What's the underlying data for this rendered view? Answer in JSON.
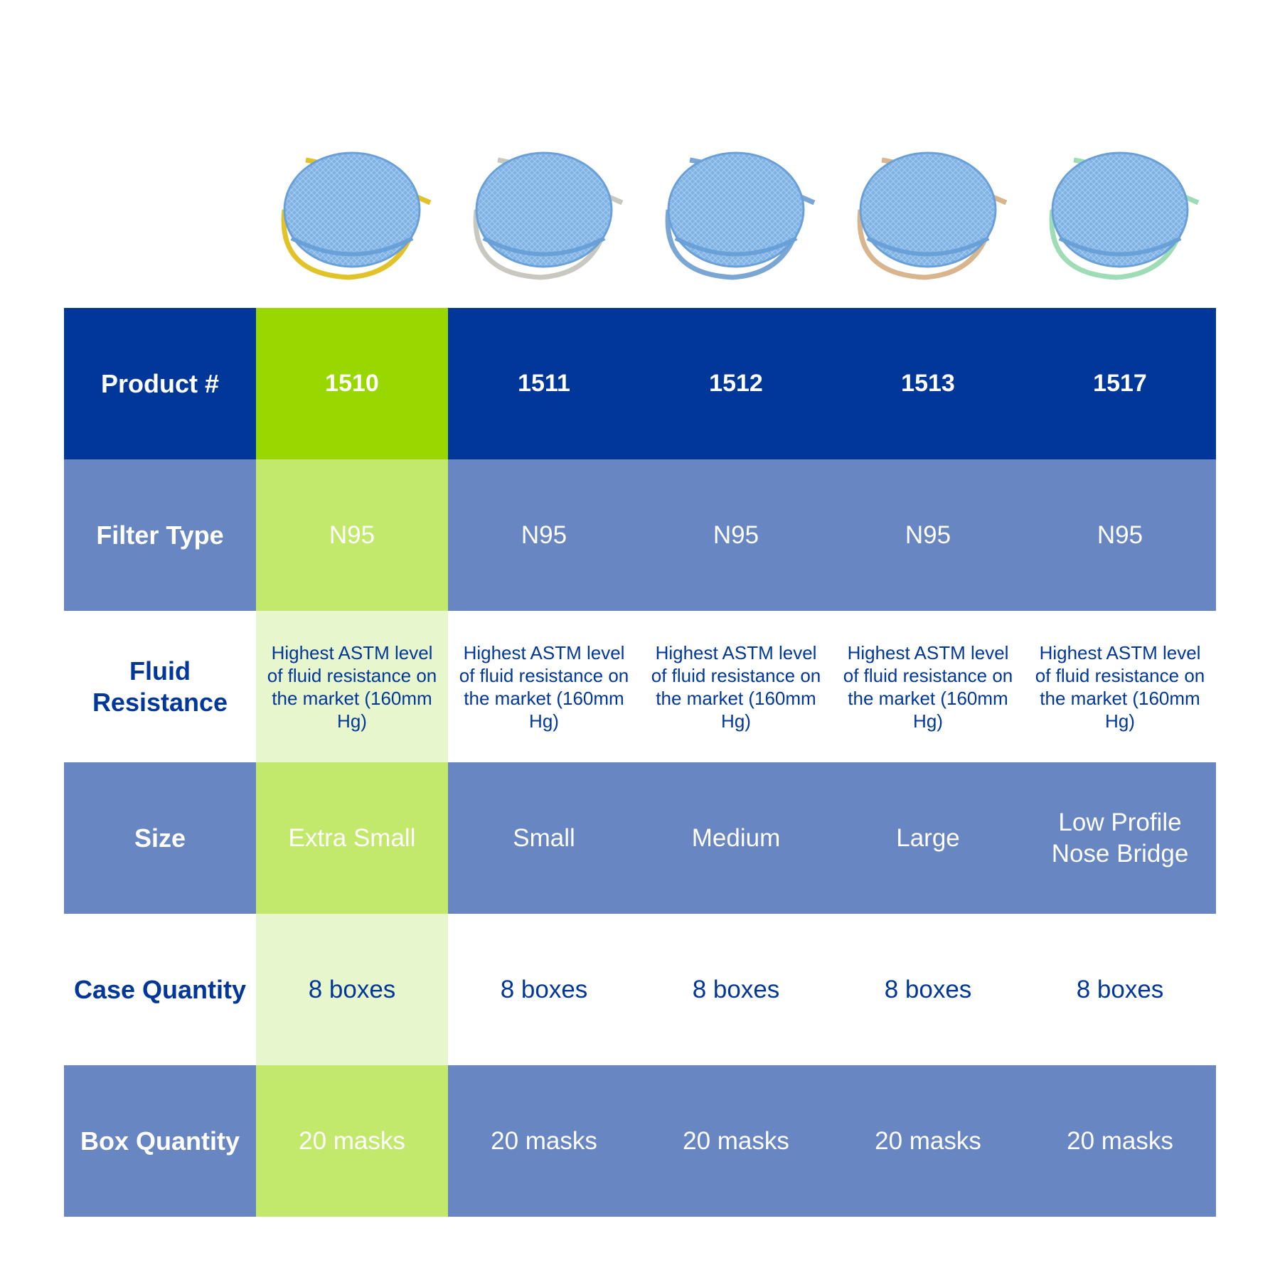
{
  "colors": {
    "header": "#003799",
    "row_alt": "#6786c2",
    "highlight_header": "#99d700",
    "highlight_alt": "#c3e96c",
    "highlight_light": "#e8f6cd",
    "mask": "#7fb2e5"
  },
  "masks": [
    {
      "strap_color": "#e2c229"
    },
    {
      "strap_color": "#c8c8c0"
    },
    {
      "strap_color": "#7aa6d4"
    },
    {
      "strap_color": "#d8b58c"
    },
    {
      "strap_color": "#9edcb8"
    }
  ],
  "rows": {
    "product": {
      "label": "Product #",
      "values": [
        "1510",
        "1511",
        "1512",
        "1513",
        "1517"
      ]
    },
    "filter": {
      "label": "Filter Type",
      "values": [
        "N95",
        "N95",
        "N95",
        "N95",
        "N95"
      ]
    },
    "fluid": {
      "label": "Fluid Resistance",
      "values": [
        "Highest ASTM level of fluid resistance on the market (160mm Hg)",
        "Highest ASTM level of fluid resistance on the market (160mm Hg)",
        "Highest ASTM level of fluid resistance on the market (160mm Hg)",
        "Highest ASTM level of fluid resistance on the market (160mm Hg)",
        "Highest ASTM level of fluid resistance on the market (160mm Hg)"
      ]
    },
    "size": {
      "label": "Size",
      "values": [
        "Extra Small",
        "Small",
        "Medium",
        "Large",
        "Low Profile Nose Bridge"
      ]
    },
    "case": {
      "label": "Case Quantity",
      "values": [
        "8 boxes",
        "8 boxes",
        "8 boxes",
        "8 boxes",
        "8 boxes"
      ]
    },
    "box": {
      "label": "Box Quantity",
      "values": [
        "20 masks",
        "20 masks",
        "20 masks",
        "20 masks",
        "20 masks"
      ]
    }
  }
}
